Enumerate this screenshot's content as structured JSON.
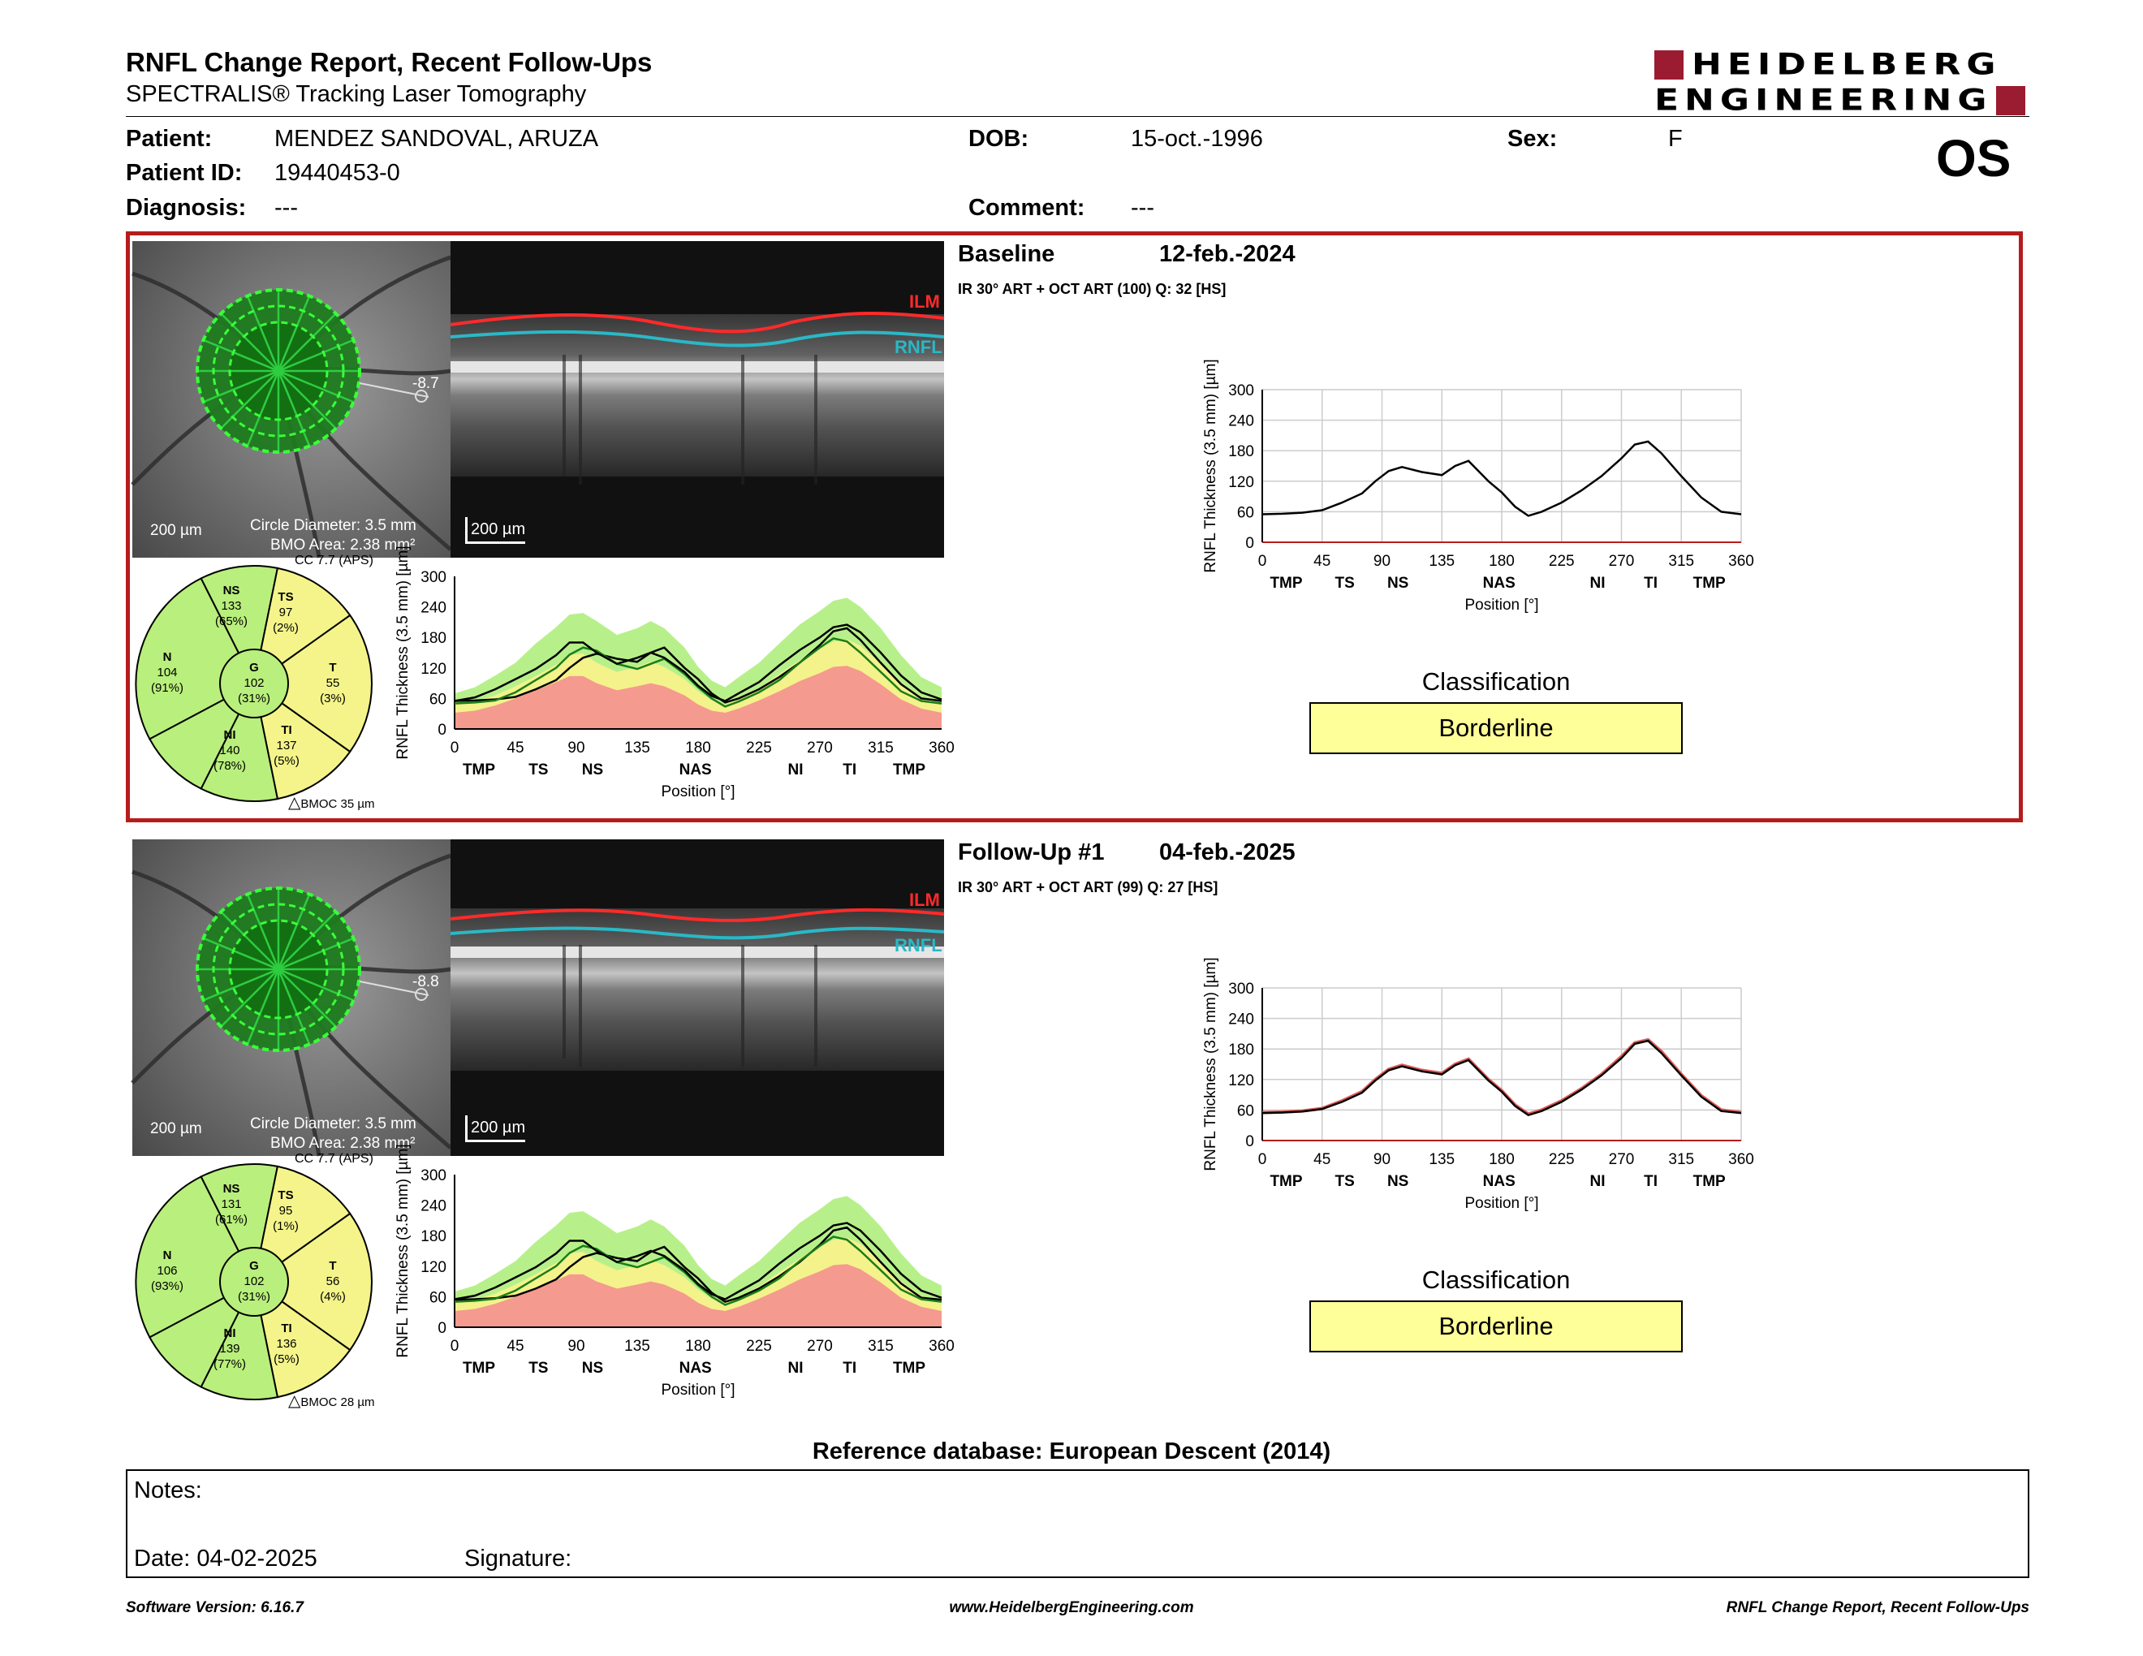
{
  "header": {
    "title": "RNFL Change Report, Recent Follow-Ups",
    "subtitle": "SPECTRALIS® Tracking Laser Tomography",
    "logo_line1": "HEIDELBERG",
    "logo_line2": "ENGINEERING",
    "eye": "OS"
  },
  "patient": {
    "patient_label": "Patient:",
    "patient_value": "MENDEZ SANDOVAL, ARUZA",
    "id_label": "Patient ID:",
    "id_value": "19440453-0",
    "diagnosis_label": "Diagnosis:",
    "diagnosis_value": "---",
    "dob_label": "DOB:",
    "dob_value": "15-oct.-1996",
    "comment_label": "Comment:",
    "comment_value": "---",
    "sex_label": "Sex:",
    "sex_value": "F"
  },
  "colors": {
    "accent_red": "#b71c1c",
    "logo_red": "#9b1b30",
    "borderline_yellow": "#ffff99",
    "sector_green": "#b9ef7c",
    "sector_yellow": "#f4f48a"
  },
  "exams": [
    {
      "section_label": "Baseline",
      "date": "12-feb.-2024",
      "scan_info": "IR 30° ART + OCT ART (100) Q: 32 [HS]",
      "fundus": {
        "scale": "200 µm",
        "circle_diameter": "Circle Diameter: 3.5 mm",
        "bmo_area": "BMO Area: 2.38 mm²",
        "angle": "-8.7"
      },
      "oct": {
        "scale": "200 µm",
        "ilm": "ILM",
        "rnfl": "RNFL"
      },
      "sectors": {
        "cc": "CC 7.7 (APS)",
        "bmoc": "BMOC 35 µm",
        "NS": {
          "label": "NS",
          "value": "133",
          "pct": "(65%)"
        },
        "TS": {
          "label": "TS",
          "value": "97",
          "pct": "(2%)"
        },
        "N": {
          "label": "N",
          "value": "104",
          "pct": "(91%)"
        },
        "G": {
          "label": "G",
          "value": "102",
          "pct": "(31%)"
        },
        "T": {
          "label": "T",
          "value": "55",
          "pct": "(3%)"
        },
        "NI": {
          "label": "NI",
          "value": "140",
          "pct": "(78%)"
        },
        "TI": {
          "label": "TI",
          "value": "137",
          "pct": "(5%)"
        }
      },
      "classification_label": "Classification",
      "classification_value": "Borderline"
    },
    {
      "section_label": "Follow-Up #1",
      "date": "04-feb.-2025",
      "scan_info": "IR 30° ART + OCT ART (99) Q: 27 [HS]",
      "fundus": {
        "scale": "200 µm",
        "circle_diameter": "Circle Diameter: 3.5 mm",
        "bmo_area": "BMO Area: 2.38 mm²",
        "angle": "-8.8"
      },
      "oct": {
        "scale": "200 µm",
        "ilm": "ILM",
        "rnfl": "RNFL"
      },
      "sectors": {
        "cc": "CC 7.7 (APS)",
        "bmoc": "BMOC 28 µm",
        "NS": {
          "label": "NS",
          "value": "131",
          "pct": "(61%)"
        },
        "TS": {
          "label": "TS",
          "value": "95",
          "pct": "(1%)"
        },
        "N": {
          "label": "N",
          "value": "106",
          "pct": "(93%)"
        },
        "G": {
          "label": "G",
          "value": "102",
          "pct": "(31%)"
        },
        "T": {
          "label": "T",
          "value": "56",
          "pct": "(4%)"
        },
        "NI": {
          "label": "NI",
          "value": "139",
          "pct": "(77%)"
        },
        "TI": {
          "label": "TI",
          "value": "136",
          "pct": "(5%)"
        }
      },
      "classification_label": "Classification",
      "classification_value": "Borderline"
    }
  ],
  "chart_data": [
    {
      "type": "area",
      "ylabel": "RNFL Thickness (3.5 mm) [µm]",
      "xlabel": "Position [°]",
      "xlim": [
        0,
        360
      ],
      "ylim": [
        0,
        300
      ],
      "xticks": [
        0,
        45,
        90,
        135,
        180,
        225,
        270,
        315,
        360
      ],
      "yticks": [
        0,
        60,
        120,
        180,
        240,
        300
      ],
      "region_labels": [
        {
          "text": "TMP",
          "x": 18
        },
        {
          "text": "TS",
          "x": 62
        },
        {
          "text": "NS",
          "x": 102
        },
        {
          "text": "NAS",
          "x": 178
        },
        {
          "text": "NI",
          "x": 252
        },
        {
          "text": "TI",
          "x": 292
        },
        {
          "text": "TMP",
          "x": 336
        }
      ],
      "x": [
        0,
        15,
        30,
        45,
        60,
        75,
        85,
        95,
        105,
        120,
        135,
        145,
        155,
        170,
        180,
        190,
        200,
        210,
        225,
        240,
        255,
        270,
        280,
        290,
        300,
        315,
        330,
        345,
        360
      ],
      "series": [
        {
          "values": [
            55,
            56,
            58,
            63,
            78,
            96,
            120,
            140,
            148,
            138,
            132,
            150,
            160,
            120,
            98,
            70,
            52,
            60,
            78,
            102,
            130,
            165,
            192,
            198,
            175,
            130,
            88,
            60,
            55
          ]
        },
        {
          "values": [
            50,
            52,
            56,
            72,
            96,
            120,
            146,
            160,
            154,
            128,
            118,
            128,
            138,
            108,
            82,
            60,
            44,
            54,
            72,
            96,
            130,
            160,
            178,
            172,
            150,
            112,
            74,
            55,
            50
          ]
        },
        {
          "values": [
            55,
            62,
            78,
            98,
            118,
            145,
            170,
            170,
            150,
            128,
            140,
            150,
            140,
            112,
            85,
            65,
            55,
            70,
            92,
            125,
            155,
            180,
            200,
            205,
            190,
            150,
            105,
            72,
            58
          ]
        }
      ],
      "bands": {
        "green_upper": [
          70,
          82,
          105,
          130,
          168,
          200,
          225,
          228,
          212,
          185,
          198,
          212,
          198,
          160,
          122,
          95,
          82,
          102,
          130,
          168,
          205,
          232,
          252,
          258,
          240,
          198,
          145,
          102,
          82
        ],
        "yellow_upper": [
          48,
          54,
          66,
          84,
          104,
          126,
          146,
          148,
          130,
          112,
          122,
          132,
          122,
          98,
          74,
          56,
          48,
          60,
          80,
          108,
          135,
          158,
          172,
          176,
          164,
          128,
          90,
          62,
          50
        ],
        "red_upper": [
          32,
          36,
          46,
          60,
          76,
          92,
          104,
          104,
          90,
          76,
          84,
          90,
          84,
          66,
          48,
          36,
          32,
          40,
          56,
          74,
          94,
          110,
          122,
          124,
          114,
          88,
          58,
          40,
          32
        ]
      }
    },
    {
      "type": "line",
      "ylabel": "RNFL Thickness (3.5 mm) [µm]",
      "xlabel": "Position [°]",
      "xlim": [
        0,
        360
      ],
      "ylim": [
        0,
        300
      ],
      "xticks": [
        0,
        45,
        90,
        135,
        180,
        225,
        270,
        315,
        360
      ],
      "yticks": [
        0,
        60,
        120,
        180,
        240,
        300
      ],
      "region_labels": [
        {
          "text": "TMP",
          "x": 18
        },
        {
          "text": "TS",
          "x": 62
        },
        {
          "text": "NS",
          "x": 102
        },
        {
          "text": "NAS",
          "x": 178
        },
        {
          "text": "NI",
          "x": 252
        },
        {
          "text": "TI",
          "x": 292
        },
        {
          "text": "TMP",
          "x": 336
        }
      ],
      "x": [
        0,
        15,
        30,
        45,
        60,
        75,
        85,
        95,
        105,
        120,
        135,
        145,
        155,
        170,
        180,
        190,
        200,
        210,
        225,
        240,
        255,
        270,
        280,
        290,
        300,
        315,
        330,
        345,
        360
      ],
      "series": [
        {
          "values": [
            55,
            56,
            58,
            63,
            78,
            96,
            120,
            140,
            148,
            138,
            132,
            150,
            160,
            120,
            98,
            70,
            52,
            60,
            78,
            102,
            130,
            165,
            192,
            198,
            175,
            130,
            88,
            60,
            55
          ]
        }
      ]
    },
    {
      "type": "area",
      "ylabel": "RNFL Thickness (3.5 mm) [µm]",
      "xlabel": "Position [°]",
      "xlim": [
        0,
        360
      ],
      "ylim": [
        0,
        300
      ],
      "xticks": [
        0,
        45,
        90,
        135,
        180,
        225,
        270,
        315,
        360
      ],
      "yticks": [
        0,
        60,
        120,
        180,
        240,
        300
      ],
      "region_labels": [
        {
          "text": "TMP",
          "x": 18
        },
        {
          "text": "TS",
          "x": 62
        },
        {
          "text": "NS",
          "x": 102
        },
        {
          "text": "NAS",
          "x": 178
        },
        {
          "text": "NI",
          "x": 252
        },
        {
          "text": "TI",
          "x": 292
        },
        {
          "text": "TMP",
          "x": 336
        }
      ],
      "x": [
        0,
        15,
        30,
        45,
        60,
        75,
        85,
        95,
        105,
        120,
        135,
        145,
        155,
        170,
        180,
        190,
        200,
        210,
        225,
        240,
        255,
        270,
        280,
        290,
        300,
        315,
        330,
        345,
        360
      ],
      "series": [
        {
          "values": [
            54,
            55,
            57,
            62,
            76,
            94,
            118,
            138,
            146,
            136,
            130,
            148,
            158,
            118,
            96,
            68,
            50,
            58,
            76,
            100,
            128,
            162,
            190,
            196,
            172,
            128,
            86,
            58,
            54
          ]
        },
        {
          "values": [
            50,
            52,
            56,
            72,
            96,
            120,
            146,
            160,
            154,
            128,
            118,
            128,
            138,
            108,
            82,
            60,
            44,
            54,
            72,
            96,
            130,
            160,
            178,
            172,
            150,
            112,
            74,
            55,
            50
          ]
        },
        {
          "values": [
            55,
            62,
            78,
            98,
            118,
            145,
            170,
            170,
            150,
            128,
            140,
            150,
            140,
            112,
            85,
            65,
            55,
            70,
            92,
            125,
            155,
            180,
            200,
            205,
            190,
            150,
            105,
            72,
            58
          ]
        }
      ],
      "bands": {
        "green_upper": [
          70,
          82,
          105,
          130,
          168,
          200,
          225,
          228,
          212,
          185,
          198,
          212,
          198,
          160,
          122,
          95,
          82,
          102,
          130,
          168,
          205,
          232,
          252,
          258,
          240,
          198,
          145,
          102,
          82
        ],
        "yellow_upper": [
          48,
          54,
          66,
          84,
          104,
          126,
          146,
          148,
          130,
          112,
          122,
          132,
          122,
          98,
          74,
          56,
          48,
          60,
          80,
          108,
          135,
          158,
          172,
          176,
          164,
          128,
          90,
          62,
          50
        ],
        "red_upper": [
          32,
          36,
          46,
          60,
          76,
          92,
          104,
          104,
          90,
          76,
          84,
          90,
          84,
          66,
          48,
          36,
          32,
          40,
          56,
          74,
          94,
          110,
          122,
          124,
          114,
          88,
          58,
          40,
          32
        ]
      }
    },
    {
      "type": "line",
      "ylabel": "RNFL Thickness (3.5 mm) [µm]",
      "xlabel": "Position [°]",
      "xlim": [
        0,
        360
      ],
      "ylim": [
        0,
        300
      ],
      "xticks": [
        0,
        45,
        90,
        135,
        180,
        225,
        270,
        315,
        360
      ],
      "yticks": [
        0,
        60,
        120,
        180,
        240,
        300
      ],
      "region_labels": [
        {
          "text": "TMP",
          "x": 18
        },
        {
          "text": "TS",
          "x": 62
        },
        {
          "text": "NS",
          "x": 102
        },
        {
          "text": "NAS",
          "x": 178
        },
        {
          "text": "NI",
          "x": 252
        },
        {
          "text": "TI",
          "x": 292
        },
        {
          "text": "TMP",
          "x": 336
        }
      ],
      "x": [
        0,
        15,
        30,
        45,
        60,
        75,
        85,
        95,
        105,
        120,
        135,
        145,
        155,
        170,
        180,
        190,
        200,
        210,
        225,
        240,
        255,
        270,
        280,
        290,
        300,
        315,
        330,
        345,
        360
      ],
      "series": [
        {
          "values": [
            55,
            56,
            58,
            63,
            78,
            96,
            120,
            140,
            148,
            138,
            132,
            150,
            160,
            120,
            98,
            70,
            52,
            60,
            78,
            102,
            130,
            165,
            192,
            198,
            175,
            130,
            88,
            60,
            55
          ]
        },
        {
          "values": [
            54,
            55,
            57,
            62,
            76,
            94,
            118,
            138,
            146,
            136,
            130,
            148,
            158,
            118,
            96,
            68,
            50,
            58,
            76,
            100,
            128,
            162,
            190,
            196,
            172,
            128,
            86,
            58,
            54
          ]
        }
      ]
    }
  ],
  "reference_db": "Reference database: European Descent (2014)",
  "notes": {
    "notes_label": "Notes:",
    "date_label": "Date: 04-02-2025",
    "signature_label": "Signature:"
  },
  "footer": {
    "software": "Software Version: 6.16.7",
    "website": "www.HeidelbergEngineering.com",
    "report": "RNFL Change Report, Recent Follow-Ups"
  }
}
